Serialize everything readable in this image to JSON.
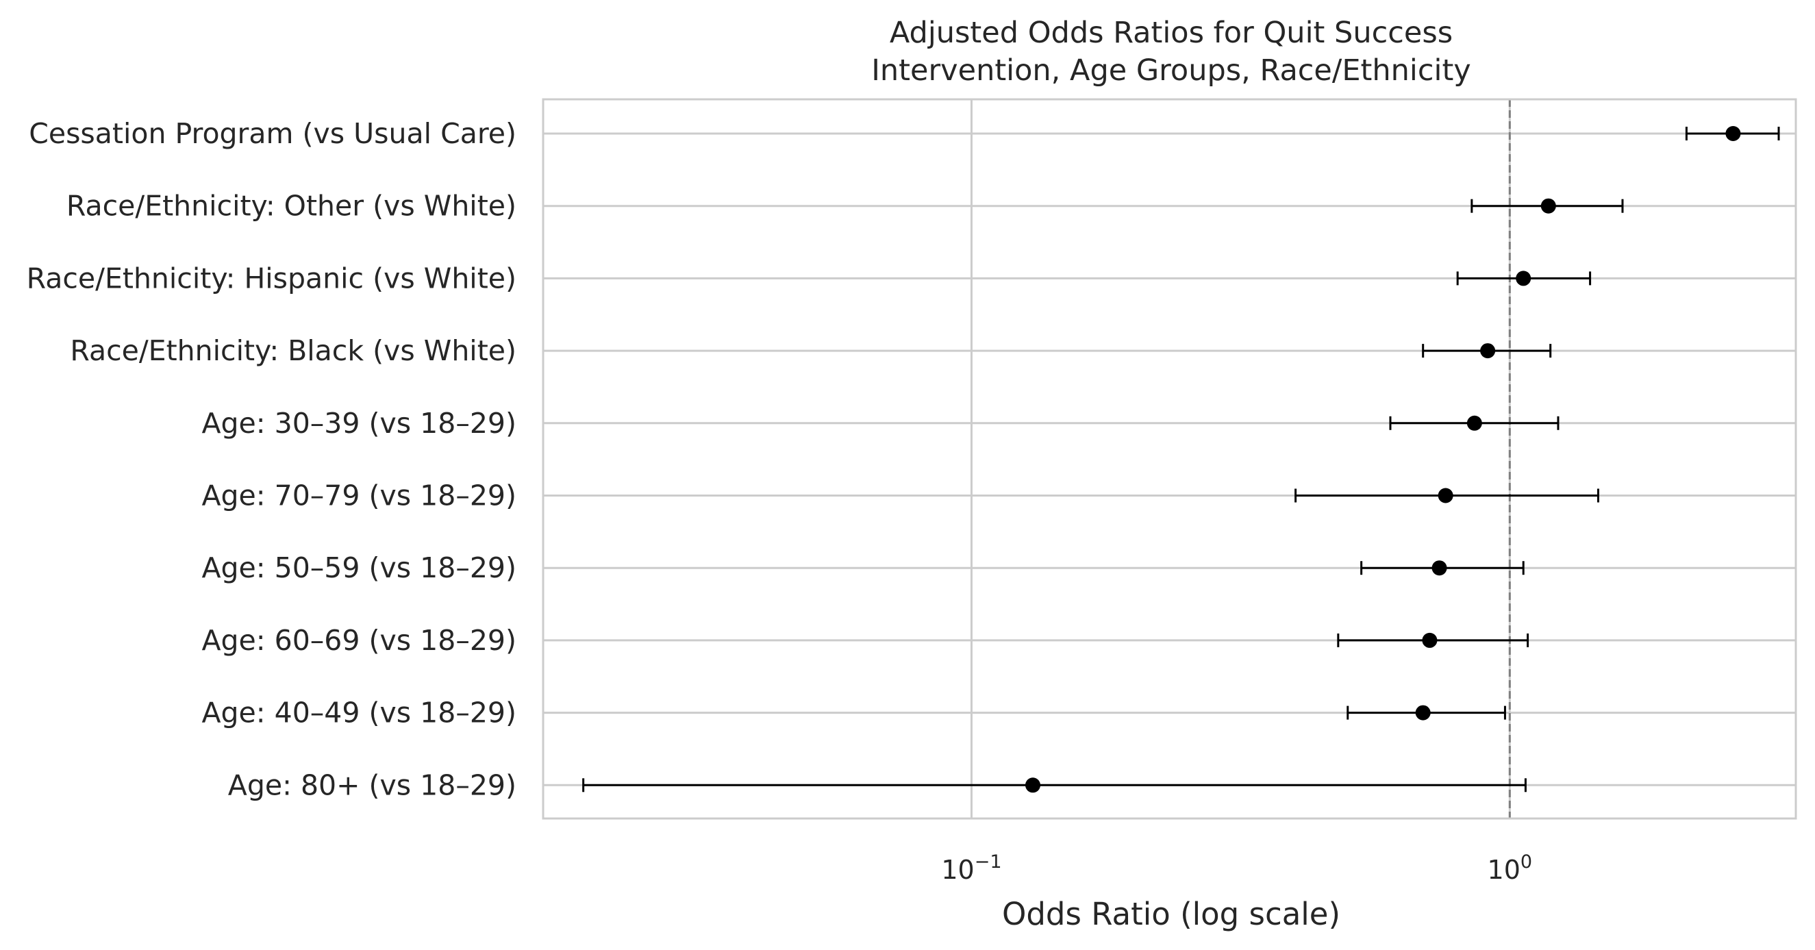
{
  "chart_data": {
    "type": "forest",
    "title_line1": "Adjusted Odds Ratios for Quit Success",
    "title_line2": "Intervention, Age Groups, Race/Ethnicity",
    "xlabel": "Odds Ratio (log scale)",
    "ylabel": "",
    "x_scale": "log",
    "xlim": [
      0.016,
      3.4
    ],
    "x_ticks": [
      {
        "value": 0.1,
        "base": "10",
        "exponent": "−1"
      },
      {
        "value": 1,
        "base": "10",
        "exponent": "0"
      }
    ],
    "reference_line": 1,
    "grid": true,
    "rows": [
      {
        "label": "Cessation Program (vs Usual Care)",
        "or": 2.6,
        "lo": 2.13,
        "hi": 3.16
      },
      {
        "label": "Race/Ethnicity: Other (vs White)",
        "or": 1.18,
        "lo": 0.85,
        "hi": 1.62
      },
      {
        "label": "Race/Ethnicity: Hispanic (vs White)",
        "or": 1.06,
        "lo": 0.8,
        "hi": 1.41
      },
      {
        "label": "Race/Ethnicity: Black (vs White)",
        "or": 0.91,
        "lo": 0.69,
        "hi": 1.19
      },
      {
        "label": "Age: 30–39 (vs 18–29)",
        "or": 0.86,
        "lo": 0.6,
        "hi": 1.23
      },
      {
        "label": "Age: 70–79 (vs 18–29)",
        "or": 0.76,
        "lo": 0.4,
        "hi": 1.46
      },
      {
        "label": "Age: 50–59 (vs 18–29)",
        "or": 0.74,
        "lo": 0.53,
        "hi": 1.06
      },
      {
        "label": "Age: 60–69 (vs 18–29)",
        "or": 0.71,
        "lo": 0.48,
        "hi": 1.08
      },
      {
        "label": "Age: 40–49 (vs 18–29)",
        "or": 0.69,
        "lo": 0.5,
        "hi": 0.98
      },
      {
        "label": "Age: 80+ (vs 18–29)",
        "or": 0.13,
        "lo": 0.019,
        "hi": 1.07
      }
    ],
    "colors": {
      "marker": "#000000",
      "grid": "#cccccc",
      "frame": "#cccccc",
      "reference": "#808080"
    }
  }
}
